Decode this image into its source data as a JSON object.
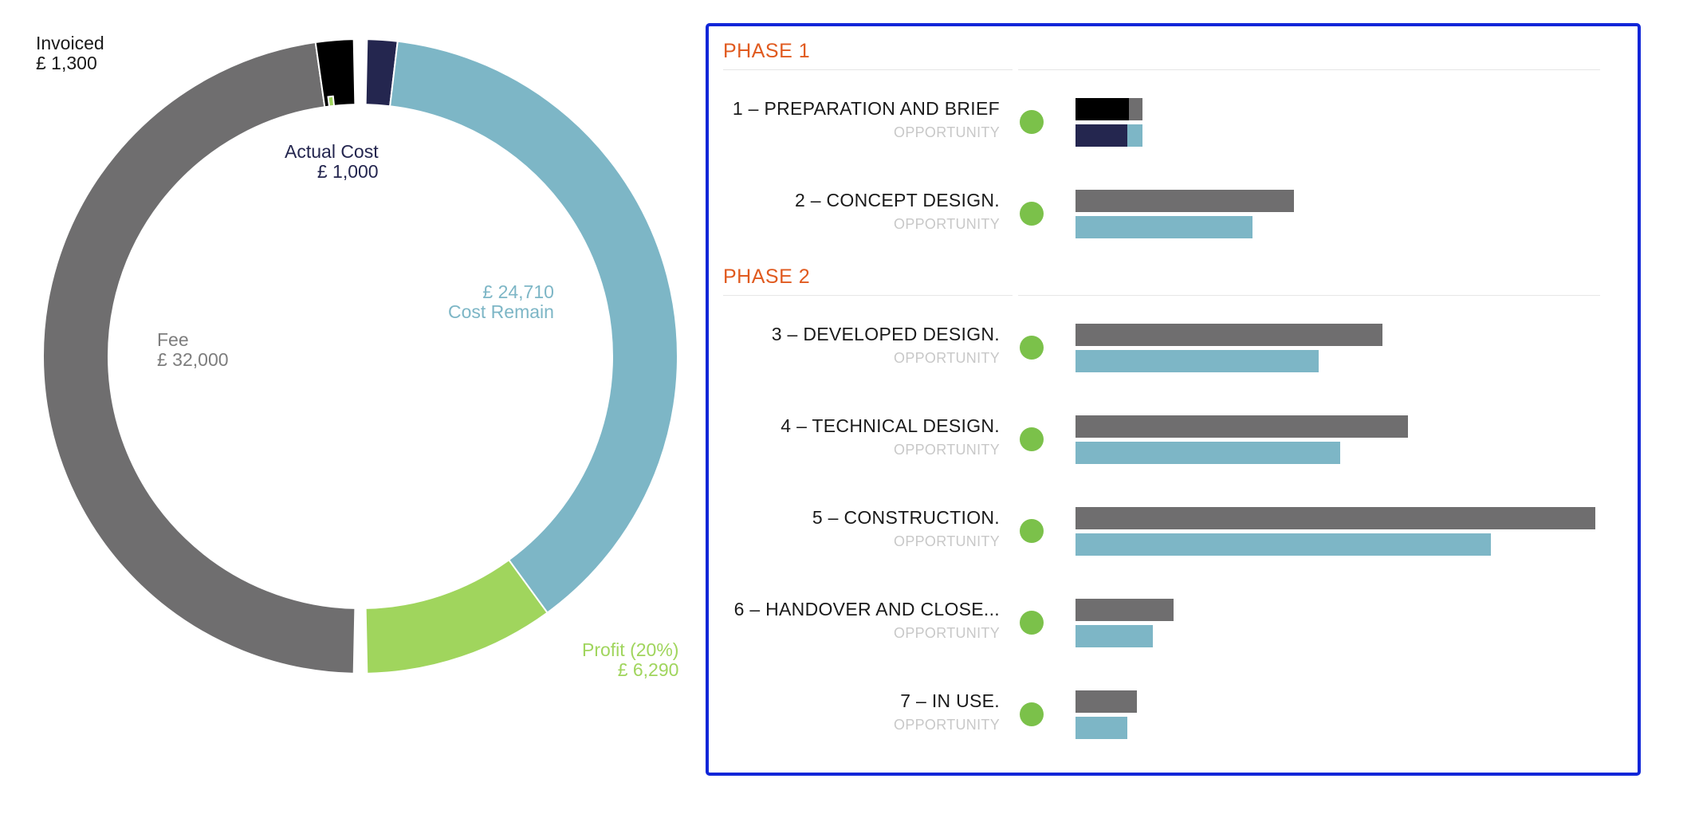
{
  "colors": {
    "fee": "#6f6e6f",
    "invoiced": "#000000",
    "actual_cost": "#24264f",
    "cost_remain": "#7db6c6",
    "profit": "#a0d55d",
    "phase": "#e05a1f",
    "status_dot": "#7bc14a",
    "panel_border": "#1026d8"
  },
  "donut": {
    "labels": {
      "invoiced": {
        "title": "Invoiced",
        "value": "£ 1,300"
      },
      "actual_cost": {
        "title": "Actual Cost",
        "value": "£ 1,000"
      },
      "fee": {
        "title": "Fee",
        "value": "£ 32,000"
      },
      "cost_remain": {
        "value": "£ 24,710",
        "title": "Cost Remain"
      },
      "profit": {
        "title": "Profit (20%)",
        "value": "£ 6,290"
      }
    },
    "outer_ring": {
      "fee": 32000,
      "invoiced": 1300,
      "invoiced_inner_sliver_pct": 1.0
    },
    "inner_ring": {
      "actual_cost": 1000,
      "cost_remain": 24710,
      "profit": 6290
    }
  },
  "phases": [
    {
      "title": "PHASE 1",
      "stages": [
        {
          "name": "1 – PREPARATION AND BRIEF",
          "status": "OPPORTUNITY",
          "fee": 100,
          "invoiced": 80,
          "cost": 100,
          "actual": 77
        },
        {
          "name": "2 – CONCEPT DESIGN.",
          "status": "OPPORTUNITY",
          "fee": 327,
          "invoiced": 0,
          "cost": 264,
          "actual": 0
        }
      ]
    },
    {
      "title": "PHASE 2",
      "stages": [
        {
          "name": "3 – DEVELOPED DESIGN.",
          "status": "OPPORTUNITY",
          "fee": 459,
          "invoiced": 0,
          "cost": 364,
          "actual": 0
        },
        {
          "name": "4 – TECHNICAL DESIGN.",
          "status": "OPPORTUNITY",
          "fee": 497,
          "invoiced": 0,
          "cost": 396,
          "actual": 0
        },
        {
          "name": "5 – CONSTRUCTION.",
          "status": "OPPORTUNITY",
          "fee": 777,
          "invoiced": 0,
          "cost": 621,
          "actual": 0
        },
        {
          "name": "6 – HANDOVER AND CLOSE...",
          "status": "OPPORTUNITY",
          "fee": 147,
          "invoiced": 0,
          "cost": 116,
          "actual": 0
        },
        {
          "name": "7 – IN USE.",
          "status": "OPPORTUNITY",
          "fee": 92,
          "invoiced": 0,
          "cost": 78,
          "actual": 0
        }
      ]
    }
  ]
}
